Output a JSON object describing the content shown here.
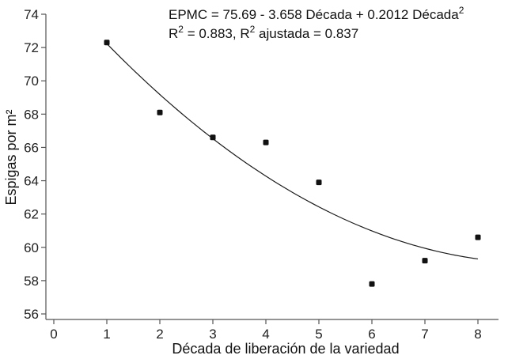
{
  "chart_data": {
    "type": "scatter",
    "xlabel": "Década de liberación de la variedad",
    "ylabel": "Espigas por m²",
    "xlim": [
      0,
      8
    ],
    "ylim": [
      56,
      74
    ],
    "xticks": [
      0,
      1,
      2,
      3,
      4,
      5,
      6,
      7,
      8
    ],
    "yticks": [
      56,
      58,
      60,
      62,
      64,
      66,
      68,
      70,
      72,
      74
    ],
    "grid": false,
    "points": [
      {
        "x": 1,
        "y": 72.3
      },
      {
        "x": 2,
        "y": 68.1
      },
      {
        "x": 3,
        "y": 66.6
      },
      {
        "x": 4,
        "y": 66.3
      },
      {
        "x": 5,
        "y": 63.9
      },
      {
        "x": 6,
        "y": 57.8
      },
      {
        "x": 7,
        "y": 59.2
      },
      {
        "x": 8,
        "y": 60.6
      }
    ],
    "fit": {
      "type": "quadratic",
      "intercept": 75.69,
      "linear": -3.658,
      "quadratic": 0.2012,
      "x_range": [
        1,
        8
      ]
    },
    "annotations": {
      "equation_prefix": "EPMC = 75.69 - 3.658 Década + 0.2012 Década",
      "equation_superscript": "2",
      "r2_label": "R",
      "r2_value": " = 0.883, R",
      "r2_adj_value": " ajustada = 0.837"
    },
    "colors": {
      "points": "#111111",
      "line": "#1a1a1a",
      "axis": "#555555"
    }
  }
}
